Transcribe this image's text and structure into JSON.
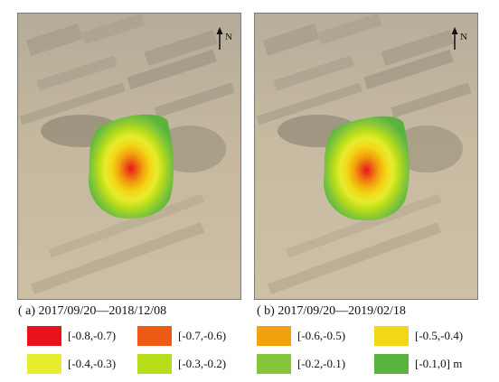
{
  "panels": [
    {
      "id": "a",
      "north_label": "N",
      "caption": "( a)  2017/09/20—2018/12/08"
    },
    {
      "id": "b",
      "north_label": "N",
      "caption": "( b)  2017/09/20—2019/02/18"
    }
  ],
  "legend": {
    "items": [
      {
        "label": "[-0.8,-0.7)",
        "color": "#e8141c"
      },
      {
        "label": "[-0.7,-0.6)",
        "color": "#ec5a14"
      },
      {
        "label": "[-0.6,-0.5)",
        "color": "#f2a20f"
      },
      {
        "label": "[-0.5,-0.4)",
        "color": "#f2d817"
      },
      {
        "label": "[-0.4,-0.3)",
        "color": "#e6ec2e"
      },
      {
        "label": "[-0.3,-0.2)",
        "color": "#b7dc18"
      },
      {
        "label": "[-0.2,-0.1)",
        "color": "#86c73a"
      },
      {
        "label": "[-0.1,0] m",
        "color": "#58b43d"
      }
    ]
  },
  "colors": {
    "imagery_base": "#c6b79d",
    "panel_border": "#7a7a7a"
  }
}
